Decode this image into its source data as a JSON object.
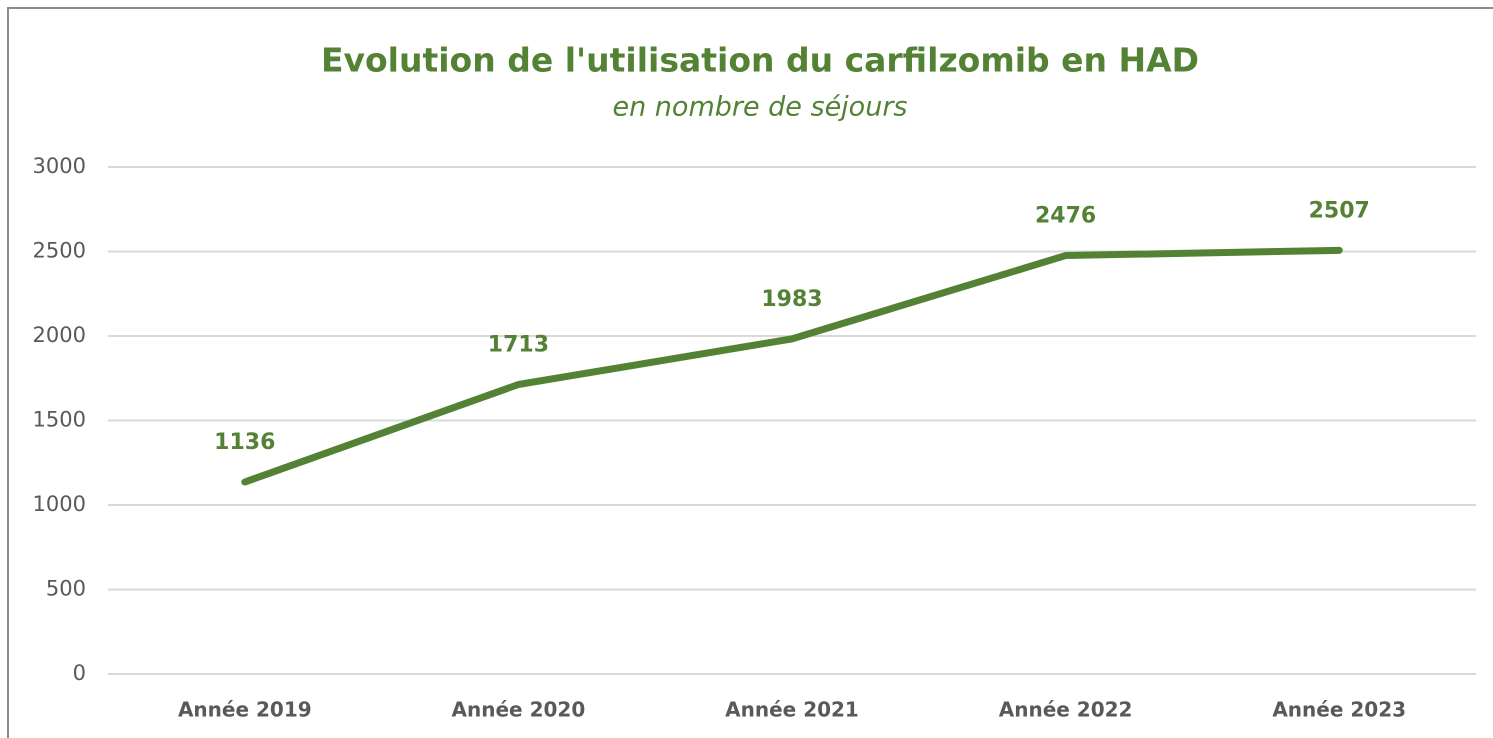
{
  "chart_data": {
    "type": "line",
    "title": "Evolution de l'utilisation du carfilzomib en HAD",
    "subtitle": "en nombre de séjours",
    "categories": [
      "Année 2019",
      "Année 2020",
      "Année 2021",
      "Année 2022",
      "Année 2023"
    ],
    "values": [
      1136,
      1713,
      1983,
      2476,
      2507
    ],
    "color": "#548235",
    "ylim": [
      0,
      3000
    ],
    "yticks": [
      0,
      500,
      1000,
      1500,
      2000,
      2500,
      3000
    ],
    "grid": true
  }
}
